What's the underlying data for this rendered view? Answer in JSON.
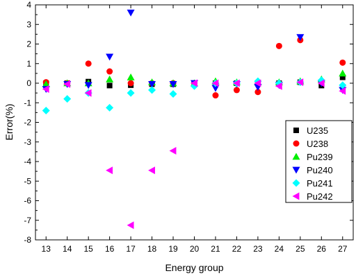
{
  "chart_data": {
    "type": "scatter",
    "xlabel": "Energy group",
    "ylabel": "Error(%)",
    "xlim": [
      12.5,
      27.5
    ],
    "ylim": [
      -8,
      4
    ],
    "xticks": [
      13,
      14,
      15,
      16,
      17,
      18,
      19,
      20,
      21,
      22,
      23,
      24,
      25,
      26,
      27
    ],
    "yticks": [
      -8,
      -7,
      -6,
      -5,
      -4,
      -3,
      -2,
      -1,
      0,
      1,
      2,
      3,
      4
    ],
    "legend_position": "lower-right",
    "series": [
      {
        "name": "U235",
        "marker": "square",
        "color": "#000000",
        "points": [
          [
            13,
            0.0
          ],
          [
            14,
            0.0
          ],
          [
            15,
            0.08
          ],
          [
            16,
            -0.12
          ],
          [
            17,
            -0.1
          ],
          [
            18,
            -0.05
          ],
          [
            19,
            -0.05
          ],
          [
            20,
            0.0
          ],
          [
            21,
            0.0
          ],
          [
            22,
            0.0
          ],
          [
            23,
            -0.02
          ],
          [
            24,
            0.0
          ],
          [
            25,
            0.05
          ],
          [
            26,
            -0.12
          ],
          [
            27,
            0.3
          ]
        ]
      },
      {
        "name": "U238",
        "marker": "circle",
        "color": "#ff0000",
        "points": [
          [
            13,
            0.05
          ],
          [
            14,
            0.0
          ],
          [
            15,
            1.0
          ],
          [
            16,
            0.6
          ],
          [
            17,
            0.0
          ],
          [
            18,
            0.0
          ],
          [
            19,
            0.0
          ],
          [
            20,
            0.0
          ],
          [
            21,
            -0.62
          ],
          [
            22,
            -0.35
          ],
          [
            23,
            -0.45
          ],
          [
            24,
            1.9
          ],
          [
            25,
            2.2
          ],
          [
            26,
            0.1
          ],
          [
            27,
            1.05
          ]
        ]
      },
      {
        "name": "Pu239",
        "marker": "triangle-up",
        "color": "#00ee00",
        "points": [
          [
            13,
            -0.05
          ],
          [
            14,
            0.0
          ],
          [
            15,
            0.0
          ],
          [
            16,
            0.2
          ],
          [
            17,
            0.3
          ],
          [
            18,
            0.05
          ],
          [
            19,
            0.0
          ],
          [
            20,
            0.0
          ],
          [
            21,
            0.1
          ],
          [
            22,
            0.05
          ],
          [
            23,
            0.05
          ],
          [
            24,
            0.05
          ],
          [
            25,
            0.1
          ],
          [
            26,
            0.2
          ],
          [
            27,
            0.5
          ]
        ]
      },
      {
        "name": "Pu240",
        "marker": "triangle-down",
        "color": "#0000ff",
        "points": [
          [
            13,
            -0.3
          ],
          [
            14,
            -0.05
          ],
          [
            15,
            -0.1
          ],
          [
            16,
            1.35
          ],
          [
            17,
            3.6
          ],
          [
            18,
            -0.05
          ],
          [
            19,
            -0.05
          ],
          [
            20,
            0.0
          ],
          [
            21,
            -0.25
          ],
          [
            22,
            -0.05
          ],
          [
            23,
            -0.2
          ],
          [
            24,
            -0.1
          ],
          [
            25,
            2.35
          ],
          [
            26,
            0.0
          ],
          [
            27,
            -0.35
          ]
        ]
      },
      {
        "name": "Pu241",
        "marker": "diamond",
        "color": "#00ffff",
        "points": [
          [
            13,
            -1.4
          ],
          [
            14,
            -0.8
          ],
          [
            15,
            -0.5
          ],
          [
            16,
            -1.25
          ],
          [
            17,
            -0.5
          ],
          [
            18,
            -0.35
          ],
          [
            19,
            -0.55
          ],
          [
            20,
            -0.15
          ],
          [
            21,
            0.0
          ],
          [
            22,
            0.0
          ],
          [
            23,
            0.1
          ],
          [
            24,
            0.0
          ],
          [
            25,
            0.05
          ],
          [
            26,
            0.15
          ],
          [
            27,
            -0.1
          ]
        ]
      },
      {
        "name": "Pu242",
        "marker": "triangle-left",
        "color": "#ff00ff",
        "points": [
          [
            13,
            -0.3
          ],
          [
            14,
            -0.05
          ],
          [
            15,
            -0.5
          ],
          [
            16,
            -4.45
          ],
          [
            17,
            -7.25
          ],
          [
            18,
            -4.45
          ],
          [
            19,
            -3.45
          ],
          [
            20,
            0.0
          ],
          [
            21,
            0.0
          ],
          [
            22,
            0.0
          ],
          [
            23,
            0.0
          ],
          [
            24,
            -0.15
          ],
          [
            25,
            0.05
          ],
          [
            26,
            0.0
          ],
          [
            27,
            -0.4
          ]
        ]
      }
    ]
  }
}
